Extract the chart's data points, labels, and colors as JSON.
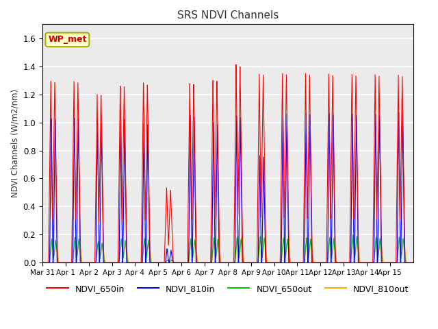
{
  "title": "SRS NDVI Channels",
  "ylabel": "NDVI Channels (W/m2/nm)",
  "xlabel": "",
  "annotation": "WP_met",
  "ylim": [
    0.0,
    1.7
  ],
  "yticks": [
    0.0,
    0.2,
    0.4,
    0.6,
    0.8,
    1.0,
    1.2,
    1.4,
    1.6
  ],
  "legend_labels": [
    "NDVI_650in",
    "NDVI_810in",
    "NDVI_650out",
    "NDVI_810out"
  ],
  "line_colors": [
    "#ff0000",
    "#0000ff",
    "#00cc00",
    "#ffaa00"
  ],
  "bg_color": "#ebebeb",
  "tick_dates": [
    "Mar 31",
    "Apr 1",
    "Apr 2",
    "Apr 3",
    "Apr 4",
    "Apr 5",
    "Apr 6",
    "Apr 7",
    "Apr 8",
    "Apr 9",
    "Apr 10",
    "Apr 11",
    "Apr 12",
    "Apr 13",
    "Apr 14",
    "Apr 15"
  ],
  "figsize": [
    6.4,
    4.8
  ],
  "dpi": 100,
  "num_days": 16,
  "samples_per_day": 288,
  "peak_650in": [
    1.31,
    1.31,
    1.22,
    1.28,
    1.3,
    0.54,
    1.29,
    1.31,
    1.42,
    1.35,
    1.35,
    1.35,
    1.35,
    1.35,
    1.35,
    1.35
  ],
  "peak_810in": [
    1.05,
    1.05,
    1.01,
    1.04,
    1.0,
    0.1,
    1.05,
    1.0,
    1.05,
    0.77,
    1.08,
    1.08,
    1.08,
    1.08,
    1.08,
    1.1
  ],
  "peak_650out": [
    0.17,
    0.18,
    0.15,
    0.17,
    0.17,
    0.02,
    0.17,
    0.18,
    0.18,
    0.19,
    0.18,
    0.18,
    0.18,
    0.2,
    0.18,
    0.18
  ],
  "peak_810out": [
    0.17,
    0.18,
    0.15,
    0.17,
    0.18,
    0.02,
    0.18,
    0.18,
    0.19,
    0.19,
    0.18,
    0.18,
    0.19,
    0.2,
    0.19,
    0.19
  ],
  "peak_650in_2": [
    1.3,
    1.3,
    1.21,
    1.27,
    1.28,
    0.52,
    1.28,
    1.3,
    1.4,
    1.34,
    1.34,
    1.34,
    1.34,
    1.34,
    1.34,
    1.34
  ],
  "peak_810in_2": [
    1.04,
    1.04,
    1.0,
    1.03,
    0.99,
    0.09,
    1.04,
    0.99,
    1.04,
    0.76,
    1.07,
    1.07,
    1.07,
    1.07,
    1.07,
    1.09
  ],
  "peak_650out_2": [
    0.16,
    0.17,
    0.14,
    0.16,
    0.16,
    0.02,
    0.16,
    0.17,
    0.17,
    0.18,
    0.17,
    0.17,
    0.17,
    0.19,
    0.17,
    0.17
  ],
  "peak_810out_2": [
    0.16,
    0.17,
    0.14,
    0.16,
    0.17,
    0.02,
    0.17,
    0.17,
    0.18,
    0.18,
    0.17,
    0.17,
    0.18,
    0.19,
    0.18,
    0.18
  ]
}
